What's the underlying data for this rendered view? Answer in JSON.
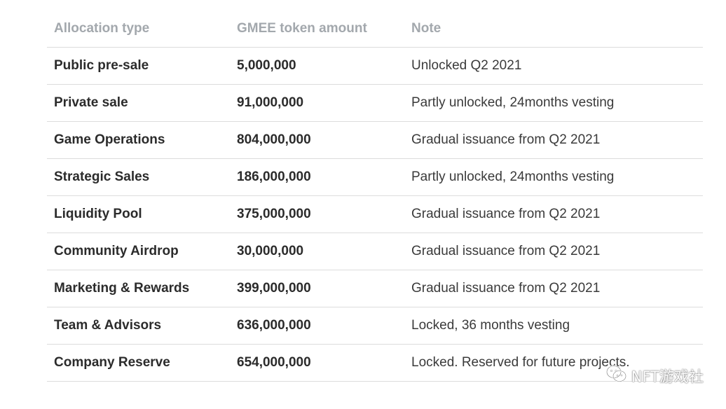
{
  "table": {
    "headers": [
      "Allocation type",
      "GMEE token amount",
      "Note"
    ],
    "rows": [
      {
        "type": "Public pre-sale",
        "amount": "5,000,000",
        "note": "Unlocked Q2 2021"
      },
      {
        "type": "Private sale",
        "amount": "91,000,000",
        "note": "Partly unlocked, 24months vesting"
      },
      {
        "type": "Game Operations",
        "amount": "804,000,000",
        "note": "Gradual issuance from Q2 2021"
      },
      {
        "type": "Strategic Sales",
        "amount": "186,000,000",
        "note": "Partly unlocked, 24months vesting"
      },
      {
        "type": "Liquidity Pool",
        "amount": "375,000,000",
        "note": "Gradual issuance from Q2 2021"
      },
      {
        "type": "Community Airdrop",
        "amount": "30,000,000",
        "note": "Gradual issuance from Q2 2021"
      },
      {
        "type": "Marketing & Rewards",
        "amount": "399,000,000",
        "note": "Gradual issuance from Q2 2021"
      },
      {
        "type": "Team & Advisors",
        "amount": "636,000,000",
        "note": "Locked, 36 months vesting"
      },
      {
        "type": "Company Reserve",
        "amount": "654,000,000",
        "note": "Locked. Reserved for future projects."
      }
    ]
  },
  "watermark": {
    "text": "NFT游戏社",
    "icon": "wechat-icon"
  }
}
